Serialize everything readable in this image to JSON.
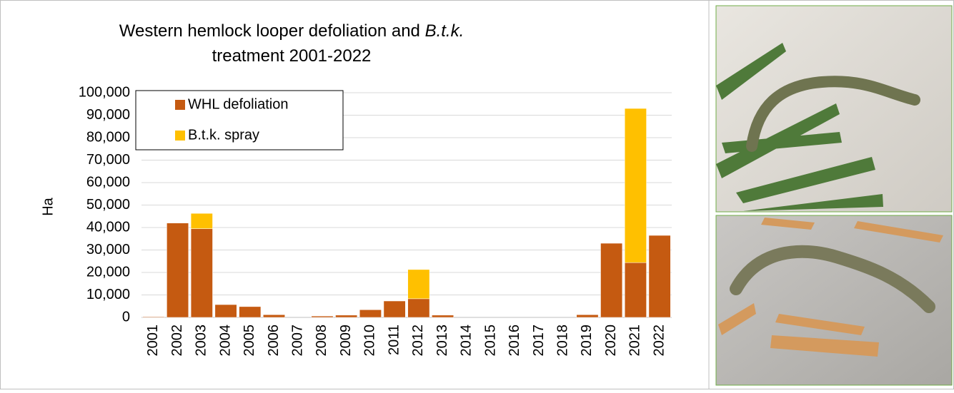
{
  "chart_data": {
    "type": "stacked_bar",
    "title": [
      "Western hemlock looper defoliation and ",
      "B.t.k.",
      "treatment 2001-2022"
    ],
    "y_label": "Ha",
    "categories": [
      "2001",
      "2002",
      "2003",
      "2004",
      "2005",
      "2006",
      "2007",
      "2008",
      "2009",
      "2010",
      "2011",
      "2012",
      "2013",
      "2014",
      "2015",
      "2016",
      "2017",
      "2018",
      "2019",
      "2020",
      "2021",
      "2022"
    ],
    "series": [
      {
        "name": "WHL defoliation",
        "color": "#c55a11",
        "values": [
          300,
          42000,
          39500,
          5700,
          4800,
          1200,
          0,
          600,
          1000,
          3400,
          7300,
          8300,
          1000,
          0,
          0,
          0,
          0,
          0,
          1200,
          33000,
          24400,
          36500
        ]
      },
      {
        "name": "B.t.k. spray",
        "color": "#ffc000",
        "values": [
          0,
          0,
          6800,
          0,
          0,
          0,
          0,
          0,
          0,
          0,
          0,
          13000,
          0,
          0,
          0,
          0,
          0,
          0,
          0,
          0,
          68600,
          0
        ]
      }
    ],
    "ylim": [
      0,
      100000
    ],
    "yticks": [
      0,
      {
        "value": 10000,
        "label": "10,000"
      },
      {
        "value": 20000,
        "label": "20,000"
      },
      {
        "value": 30000,
        "label": "30,000"
      },
      {
        "value": 40000,
        "label": "40,000"
      },
      {
        "value": 50000,
        "label": "50,000"
      },
      {
        "value": 60000,
        "label": "60,000"
      },
      {
        "value": 70000,
        "label": "70,000"
      },
      {
        "value": 80000,
        "label": "80,000"
      },
      {
        "value": 90000,
        "label": "90,000"
      },
      {
        "value": 100000,
        "label": "100,000"
      }
    ],
    "grid": true,
    "legend": "upper left"
  }
}
